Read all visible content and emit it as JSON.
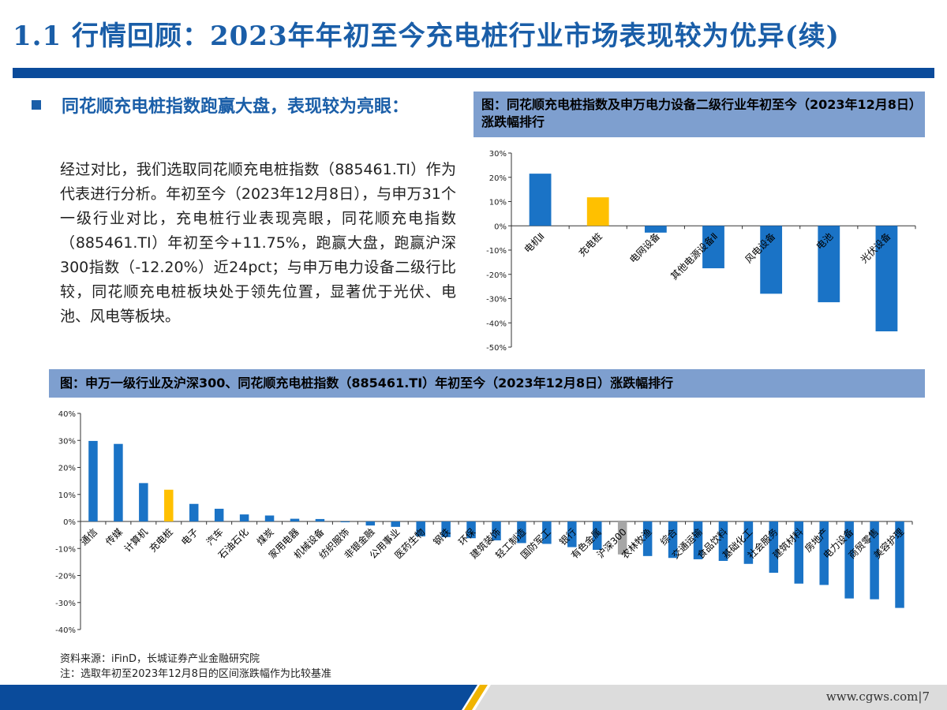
{
  "header": {
    "title": "1.1 行情回顾：2023年年初至今充电桩行业市场表现较为优异(续)"
  },
  "left_panel": {
    "bullet": "同花顺充电桩指数跑赢大盘，表现较为亮眼：",
    "paragraph": "经过对比，我们选取同花顺充电桩指数（885461.TI）作为代表进行分析。年初至今（2023年12月8日），与申万31个一级行业对比，充电桩行业表现亮眼，同花顺充电指数（885461.TI）年初至今+11.75%，跑赢大盘，跑赢沪深300指数（-12.20%）近24pct；与申万电力设备二级行比较，同花顺充电桩板块处于领先位置，显著优于光伏、电池、风电等板块。"
  },
  "figure1": {
    "caption": "图：同花顺充电桩指数及申万电力设备二级行业年初至今（2023年12月8日）涨跌幅排行"
  },
  "figure2": {
    "caption": "图：申万一级行业及沪深300、同花顺充电桩指数（885461.TI）年初至今（2023年12月8日）涨跌幅排行"
  },
  "colors": {
    "bar": "#1a73c6",
    "highlight": "#ffc000",
    "benchmark": "#a6a6a6",
    "brand": "#0a4b9b"
  },
  "chart_data": [
    {
      "type": "bar",
      "title": "",
      "categories": [
        "电机Ⅱ",
        "充电桩",
        "电网设备",
        "其他电源设备Ⅱ",
        "风电设备",
        "电池",
        "光伏设备"
      ],
      "values": [
        21.5,
        11.75,
        -2.8,
        -17.5,
        -28.0,
        -31.5,
        -43.5
      ],
      "highlight": [
        "充电桩"
      ],
      "benchmark": [],
      "ylim": [
        -50,
        30
      ],
      "yticks": [
        30,
        20,
        10,
        0,
        -10,
        -20,
        -30,
        -40,
        -50
      ],
      "yunit": "%",
      "grid": false
    },
    {
      "type": "bar",
      "title": "",
      "categories": [
        "通信",
        "传媒",
        "计算机",
        "充电桩",
        "电子",
        "汽车",
        "石油石化",
        "煤炭",
        "家用电器",
        "机械设备",
        "纺织服饰",
        "非银金融",
        "公用事业",
        "医药生物",
        "钢铁",
        "环保",
        "建筑装饰",
        "轻工制造",
        "国防军工",
        "银行",
        "有色金属",
        "沪深300",
        "农林牧渔",
        "综合",
        "交通运输",
        "食品饮料",
        "基础化工",
        "社会服务",
        "建筑材料",
        "房地产",
        "电力设备",
        "商贸零售",
        "美容护理"
      ],
      "values": [
        29.8,
        28.7,
        14.2,
        11.75,
        6.5,
        4.7,
        2.6,
        2.2,
        1.0,
        0.9,
        -0.3,
        -1.5,
        -2.0,
        -5.5,
        -5.8,
        -6.2,
        -7.0,
        -8.0,
        -8.3,
        -9.5,
        -10.5,
        -12.2,
        -12.8,
        -13.5,
        -14.0,
        -14.6,
        -15.7,
        -19.0,
        -23.0,
        -23.5,
        -28.5,
        -28.8,
        -32.0
      ],
      "highlight": [
        "充电桩"
      ],
      "benchmark": [
        "沪深300"
      ],
      "ylim": [
        -40,
        40
      ],
      "yticks": [
        40,
        30,
        20,
        10,
        0,
        -10,
        -20,
        -30,
        -40
      ],
      "yunit": "%",
      "grid": false
    }
  ],
  "notes": {
    "source": "资料来源：iFinD，长城证券产业金融研究院",
    "note": "注：选取年初至2023年12月8日的区间涨跌幅作为比较基准"
  },
  "footer": {
    "url": "www.cgws.com",
    "page": "7"
  }
}
